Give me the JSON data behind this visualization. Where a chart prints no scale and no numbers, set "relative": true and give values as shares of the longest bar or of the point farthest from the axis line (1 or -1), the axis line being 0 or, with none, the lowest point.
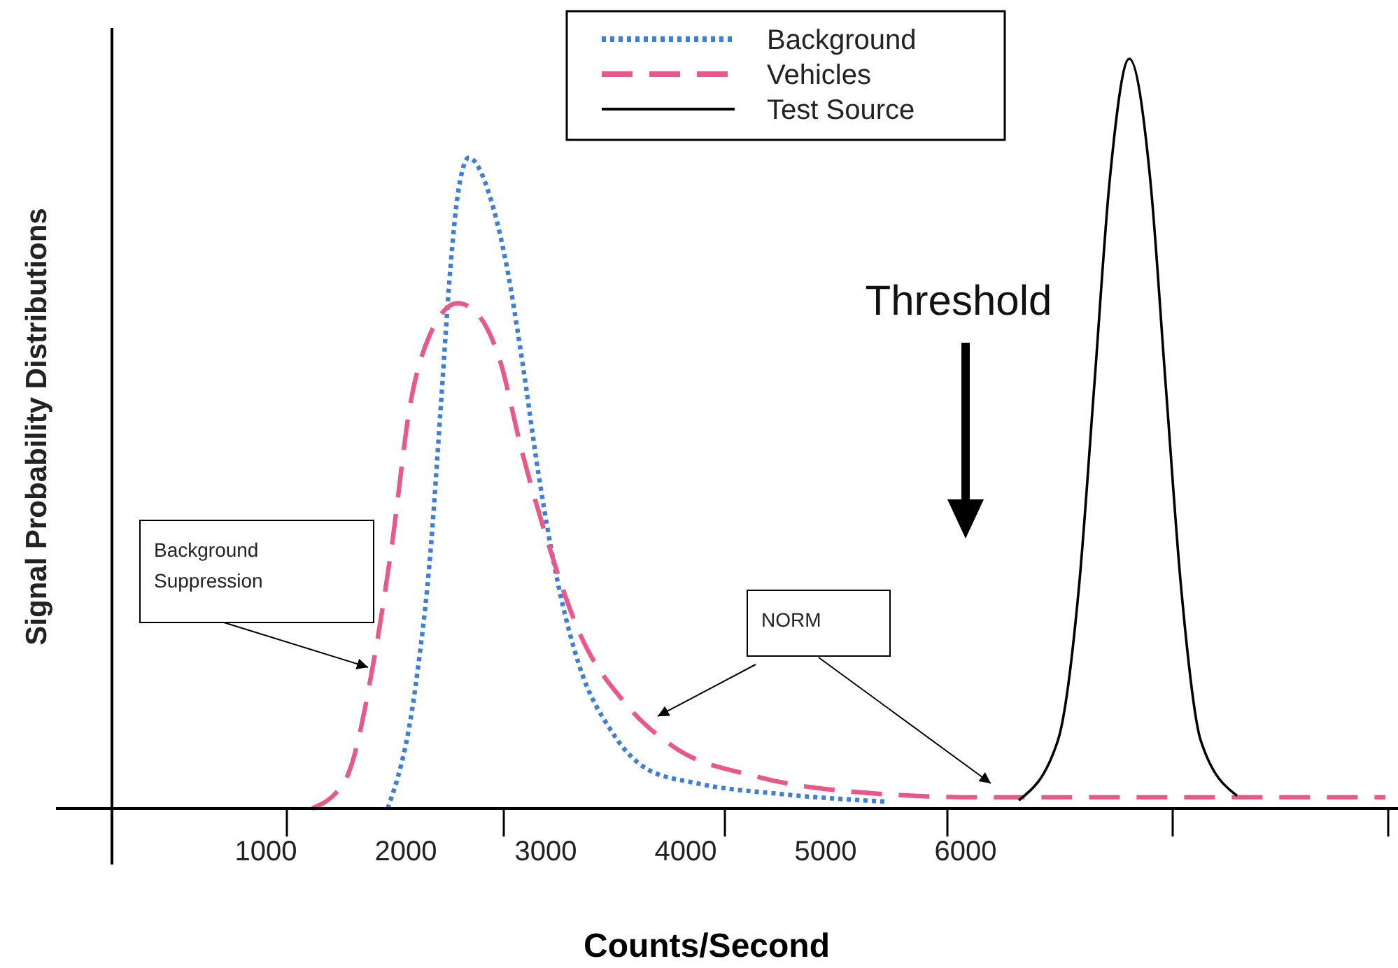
{
  "chart_data": {
    "type": "line",
    "relative": true,
    "xlabel": "Counts/Second",
    "ylabel": "Signal Probability Distributions",
    "xlim": [
      -100,
      9100
    ],
    "xticks": [
      1000,
      2000,
      3000,
      4000,
      5000,
      6000
    ],
    "legend": "top",
    "grid": false,
    "series": [
      {
        "name": "Background",
        "color": "#3b7fd9",
        "line_style": "dotted",
        "x": [
          1870,
          2070,
          2180,
          2250,
          2320,
          2370,
          2450,
          2600,
          2720,
          2830,
          2950,
          3100,
          3230,
          3470,
          3730,
          4070,
          4700,
          5450
        ],
        "values": [
          0,
          0.164,
          0.351,
          0.537,
          0.724,
          0.817,
          0.868,
          0.817,
          0.724,
          0.599,
          0.444,
          0.289,
          0.196,
          0.103,
          0.052,
          0.034,
          0.019,
          0.009
        ]
      },
      {
        "name": "Vehicles",
        "color": "#e8588a",
        "line_style": "dashed",
        "x": [
          1330,
          1570,
          1770,
          1900,
          2030,
          2170,
          2370,
          2500,
          2670,
          2830,
          3000,
          3230,
          3570,
          3900,
          4500,
          5100,
          6100,
          9000
        ],
        "values": [
          0,
          0.039,
          0.196,
          0.351,
          0.537,
          0.631,
          0.674,
          0.662,
          0.599,
          0.476,
          0.364,
          0.239,
          0.14,
          0.084,
          0.043,
          0.024,
          0.015,
          0.015
        ]
      },
      {
        "name": "Test Source",
        "color": "#000000",
        "line_style": "solid",
        "x": [
          6380,
          6660,
          6810,
          6920,
          7030,
          7170,
          7320,
          7430,
          7540,
          7680,
          7940
        ],
        "values": [
          0.011,
          0.091,
          0.295,
          0.565,
          0.838,
          1,
          0.838,
          0.565,
          0.295,
          0.091,
          0.017
        ]
      }
    ],
    "annotations": [
      "Background Suppression",
      "NORM",
      "Threshold"
    ]
  }
}
